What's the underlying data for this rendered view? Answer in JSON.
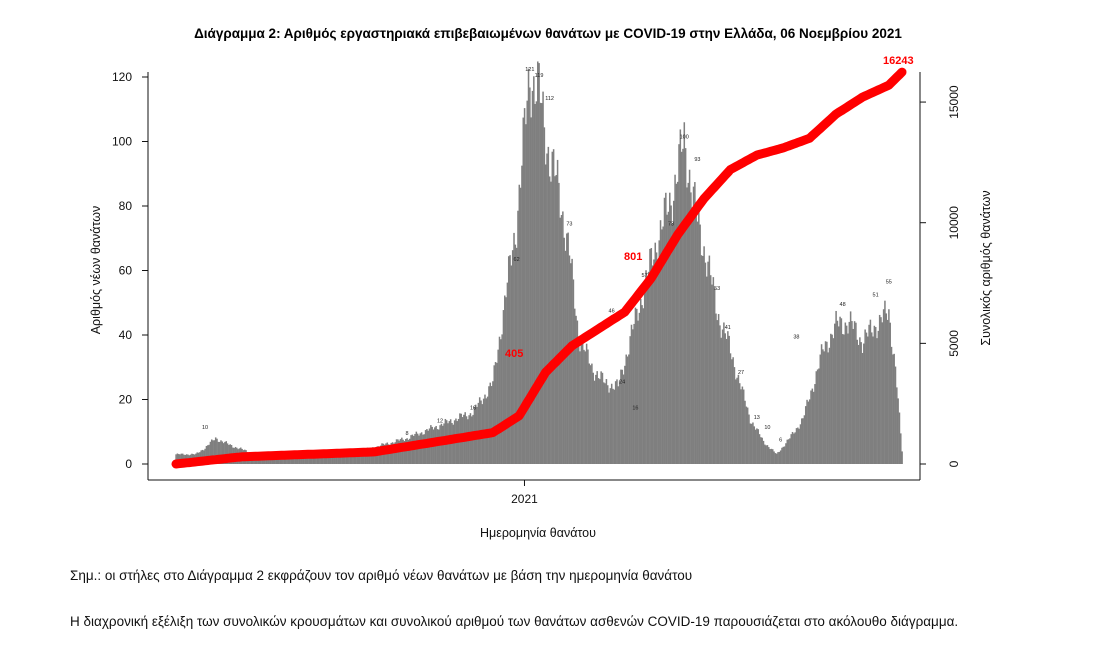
{
  "chart_data": {
    "type": "bar",
    "title": "Διάγραμμα 2: Αριθμός εργαστηριακά επιβεβαιωμένων θανάτων με COVID-19 στην Ελλάδα, 06 Νοεμβρίου 2021",
    "xlabel": "Ημερομηνία θανάτου",
    "ylabel": "Αριθμός νέων θανάτων",
    "y2label": "Συνολικός αριθμός θανάτων",
    "ylim": [
      0,
      120
    ],
    "yticks": [
      0,
      20,
      40,
      60,
      80,
      100,
      120
    ],
    "y2lim": [
      0,
      16500
    ],
    "y2ticks": [
      0,
      5000,
      10000,
      15000
    ],
    "xtick_labels": [
      "2021"
    ],
    "grid": false,
    "bar_color": "#7f7f7f",
    "line_color": "#ff0000",
    "series": [
      {
        "type": "bar",
        "x_keypoints": [
          0,
          15,
          22,
          30,
          40,
          60,
          100,
          140,
          175,
          200,
          225,
          240,
          258,
          268,
          275,
          283,
          290,
          298,
          305,
          315,
          325,
          335,
          345,
          355,
          365,
          375,
          385,
          395,
          403,
          410,
          418,
          425,
          435,
          445,
          455,
          465,
          475,
          483,
          490,
          500,
          510,
          520,
          530,
          540,
          545,
          550
        ],
        "y_keypoints": [
          3,
          3,
          5,
          8,
          6,
          3,
          3,
          4,
          8,
          12,
          16,
          25,
          75,
          121,
          115,
          95,
          85,
          65,
          40,
          30,
          25,
          24,
          40,
          55,
          70,
          82,
          100,
          75,
          62,
          47,
          38,
          28,
          14,
          7,
          3,
          8,
          14,
          25,
          35,
          43,
          44,
          38,
          43,
          47,
          30,
          4
        ]
      },
      {
        "type": "line",
        "name": "Συνολικός αριθμός θανάτων",
        "x_keypoints": [
          0,
          50,
          150,
          240,
          260,
          280,
          300,
          320,
          340,
          360,
          380,
          400,
          420,
          440,
          460,
          480,
          500,
          520,
          540,
          550
        ],
        "y_keypoints": [
          0,
          300,
          500,
          1300,
          2000,
          3800,
          4900,
          5600,
          6300,
          7700,
          9500,
          11000,
          12200,
          12800,
          13100,
          13500,
          14500,
          15200,
          15700,
          16243
        ]
      }
    ],
    "bar_labels": [
      "10",
      "8",
      "12",
      "16",
      "62",
      "121",
      "119",
      "112",
      "73",
      "46",
      "24",
      "16",
      "57",
      "73",
      "100",
      "93",
      "53",
      "41",
      "27",
      "13",
      "10",
      "6",
      "38",
      "48",
      "51",
      "55"
    ],
    "annotations": [
      "405",
      "801",
      "16243"
    ]
  },
  "notes": {
    "note1": "Σημ.: οι στήλες στο Διάγραμμα 2 εκφράζουν τον αριθμό νέων θανάτων με βάση την ημερομηνία θανάτου",
    "note2": "Η διαχρονική εξέλιξη των συνολικών κρουσμάτων και συνολικού αριθμού των θανάτων ασθενών COVID-19 παρουσιάζεται στο ακόλουθο διάγραμμα."
  }
}
